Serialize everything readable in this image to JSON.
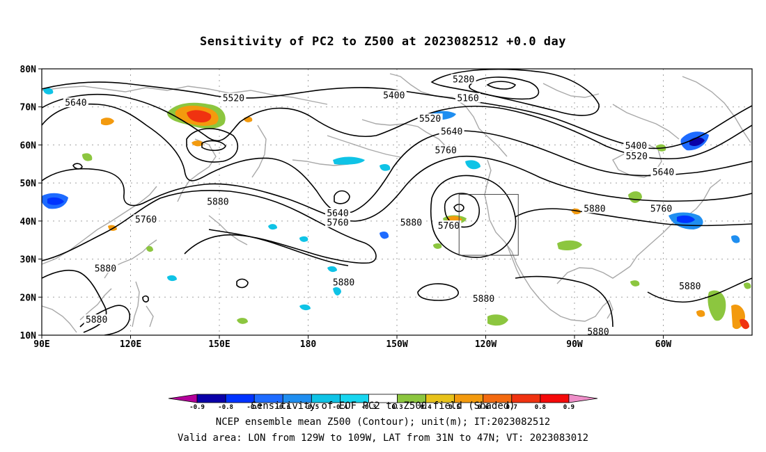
{
  "title": "Sensitivity of PC2 to Z500 at 2023082512 +0.0 day",
  "captions": [
    "Sensitivity of EOF PC2 to Z500 field (Shaded)",
    "NCEP ensemble mean Z500 (Contour); unit(m); IT:2023082512",
    "Valid area: LON from 129W to 109W, LAT from 31N to 47N; VT: 2023083012"
  ],
  "axes": {
    "lon_labels": [
      "90E",
      "120E",
      "150E",
      "180",
      "150W",
      "120W",
      "90W",
      "60W"
    ],
    "lat_labels": [
      "10N",
      "20N",
      "30N",
      "40N",
      "50N",
      "60N",
      "70N",
      "80N"
    ]
  },
  "contour_labels": [
    {
      "text": "5640",
      "lon": 101.5,
      "lat": 71.0
    },
    {
      "text": "5520",
      "lon": 154.8,
      "lat": 72.2
    },
    {
      "text": "5400",
      "lon": 209.0,
      "lat": 73.0
    },
    {
      "text": "5280",
      "lon": 232.5,
      "lat": 77.2
    },
    {
      "text": "5160",
      "lon": 234.0,
      "lat": 72.2
    },
    {
      "text": "5520",
      "lon": 221.2,
      "lat": 66.8
    },
    {
      "text": "5640",
      "lon": 228.5,
      "lat": 63.5
    },
    {
      "text": "5760",
      "lon": 226.5,
      "lat": 58.5
    },
    {
      "text": "5400",
      "lon": 290.8,
      "lat": 59.7
    },
    {
      "text": "5520",
      "lon": 291.0,
      "lat": 57.0
    },
    {
      "text": "5640",
      "lon": 300.0,
      "lat": 52.8
    },
    {
      "text": "5880",
      "lon": 149.5,
      "lat": 45.0
    },
    {
      "text": "5760",
      "lon": 125.2,
      "lat": 40.3
    },
    {
      "text": "5640",
      "lon": 190.0,
      "lat": 42.0
    },
    {
      "text": "5760",
      "lon": 190.0,
      "lat": 39.5
    },
    {
      "text": "5880",
      "lon": 214.8,
      "lat": 39.5
    },
    {
      "text": "5760",
      "lon": 227.5,
      "lat": 38.7
    },
    {
      "text": "5880",
      "lon": 276.8,
      "lat": 43.2
    },
    {
      "text": "5760",
      "lon": 299.3,
      "lat": 43.2
    },
    {
      "text": "5880",
      "lon": 111.5,
      "lat": 27.5
    },
    {
      "text": "5880",
      "lon": 192.0,
      "lat": 23.8
    },
    {
      "text": "5880",
      "lon": 108.5,
      "lat": 14.0
    },
    {
      "text": "5880",
      "lon": 239.3,
      "lat": 19.5
    },
    {
      "text": "5880",
      "lon": 278.0,
      "lat": 10.8
    },
    {
      "text": "5880",
      "lon": 309.0,
      "lat": 22.8
    }
  ],
  "valid_area": {
    "lon_min": 231,
    "lon_max": 251,
    "lat_min": 31,
    "lat_max": 47
  },
  "colorbar": {
    "ticks": [
      "-0.9",
      "-0.8",
      "-0.7",
      "-0.6",
      "-0.5",
      "-0.4",
      "-0.3",
      "0.3",
      "0.4",
      "0.5",
      "0.6",
      "0.7",
      "0.8",
      "0.9"
    ],
    "colors": [
      "#b4009a",
      "#0a00a8",
      "#0033ff",
      "#1e6bff",
      "#1f8ef0",
      "#0fc3e6",
      "#18d6f0",
      "#ffffff",
      "#8cc63f",
      "#e8c21a",
      "#f39a0e",
      "#f36a10",
      "#f03210",
      "#f50a0a",
      "#ee8ec8"
    ]
  },
  "map_colors": {
    "contour": "#000000",
    "coastline": "#a8a8a8",
    "positive_low": "#8cc63f",
    "positive_mid": "#f39a0e",
    "positive_high": "#f03210",
    "negative_low": "#0fc3e6",
    "negative_mid": "#1e6bff",
    "negative_high": "#0a00a8"
  }
}
